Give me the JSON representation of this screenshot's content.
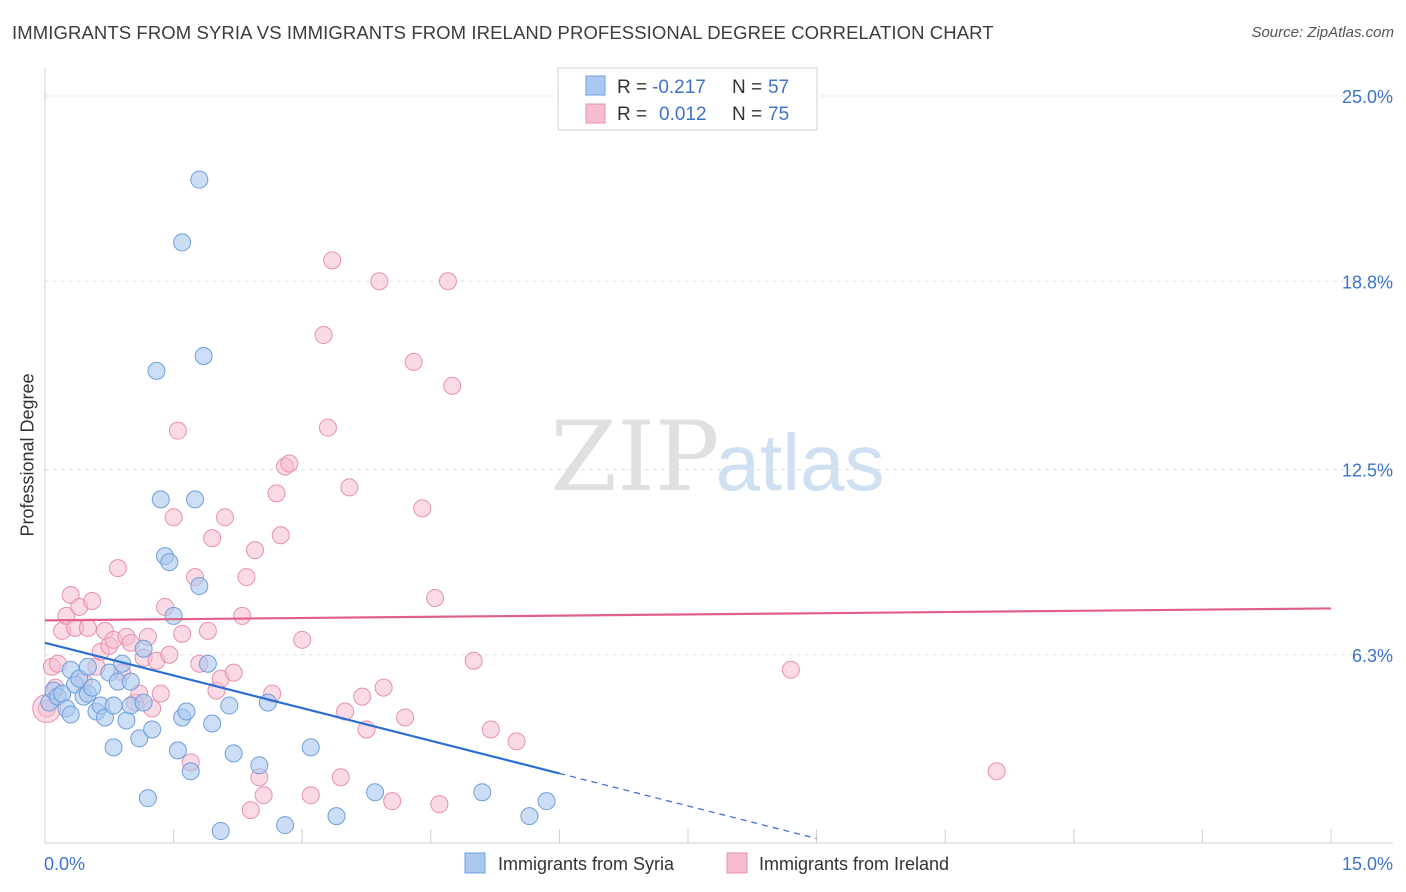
{
  "header": {
    "title": "IMMIGRANTS FROM SYRIA VS IMMIGRANTS FROM IRELAND PROFESSIONAL DEGREE CORRELATION CHART",
    "source": "Source: ZipAtlas.com"
  },
  "watermark": {
    "zip": "ZIP",
    "atlas": "atlas"
  },
  "colors": {
    "syria_fill": "#aac8f0",
    "syria_stroke": "#6e9fdc",
    "syria_line": "#2a6fd0",
    "ireland_fill": "#f6bcd0",
    "ireland_stroke": "#e890ad",
    "ireland_line": "#e0608a",
    "tick_text": "#3d74c9",
    "grid": "#dde0e4"
  },
  "legend": {
    "rows": [
      {
        "r_label": "R =",
        "r_value": "-0.217",
        "n_label": "N =",
        "n_value": "57"
      },
      {
        "r_label": "R =",
        "r_value": "0.012",
        "n_label": "N =",
        "n_value": "75"
      }
    ]
  },
  "bottom_legend": {
    "syria": "Immigrants from Syria",
    "ireland": "Immigrants from Ireland"
  },
  "chart_data": {
    "type": "scatter",
    "title": "IMMIGRANTS FROM SYRIA VS IMMIGRANTS FROM IRELAND PROFESSIONAL DEGREE CORRELATION CHART",
    "xlabel": "",
    "ylabel": "Professional Degree",
    "xlim": [
      0,
      15
    ],
    "ylim": [
      0,
      25
    ],
    "x_tick_labels": [
      "0.0%",
      "15.0%"
    ],
    "y_ticks": [
      6.3,
      12.5,
      18.8,
      25.0
    ],
    "y_tick_labels": [
      "6.3%",
      "12.5%",
      "18.8%",
      "25.0%"
    ],
    "grid": true,
    "legend_placement": "top-center",
    "series": [
      {
        "name": "Immigrants from Syria",
        "r": -0.217,
        "n": 57,
        "trend": {
          "x_solid": [
            0,
            6.0
          ],
          "y_solid": [
            6.7,
            2.33
          ],
          "x_dashed": [
            6.0,
            9.0
          ],
          "y_dashed": [
            2.33,
            0.15
          ]
        },
        "points": [
          [
            0.05,
            4.7
          ],
          [
            0.1,
            5.1
          ],
          [
            0.15,
            4.9
          ],
          [
            0.2,
            5.0
          ],
          [
            0.25,
            4.5
          ],
          [
            0.3,
            4.3
          ],
          [
            0.3,
            5.8
          ],
          [
            0.35,
            5.3
          ],
          [
            0.4,
            5.5
          ],
          [
            0.45,
            4.9
          ],
          [
            0.5,
            5.0
          ],
          [
            0.5,
            5.9
          ],
          [
            0.55,
            5.2
          ],
          [
            0.6,
            4.4
          ],
          [
            0.65,
            4.6
          ],
          [
            0.7,
            4.2
          ],
          [
            0.75,
            5.7
          ],
          [
            0.8,
            3.2
          ],
          [
            0.8,
            4.6
          ],
          [
            0.85,
            5.4
          ],
          [
            0.9,
            6.0
          ],
          [
            0.95,
            4.1
          ],
          [
            1.0,
            4.6
          ],
          [
            1.0,
            5.4
          ],
          [
            1.1,
            3.5
          ],
          [
            1.15,
            4.7
          ],
          [
            1.15,
            6.5
          ],
          [
            1.2,
            1.5
          ],
          [
            1.25,
            3.8
          ],
          [
            1.3,
            15.8
          ],
          [
            1.35,
            11.5
          ],
          [
            1.4,
            9.6
          ],
          [
            1.45,
            9.4
          ],
          [
            1.5,
            7.6
          ],
          [
            1.55,
            3.1
          ],
          [
            1.6,
            4.2
          ],
          [
            1.6,
            20.1
          ],
          [
            1.65,
            4.4
          ],
          [
            1.7,
            2.4
          ],
          [
            1.75,
            11.5
          ],
          [
            1.8,
            8.6
          ],
          [
            1.8,
            22.2
          ],
          [
            1.85,
            16.3
          ],
          [
            1.9,
            6.0
          ],
          [
            1.95,
            4.0
          ],
          [
            2.05,
            0.4
          ],
          [
            2.15,
            4.6
          ],
          [
            2.2,
            3.0
          ],
          [
            2.5,
            2.6
          ],
          [
            2.6,
            4.7
          ],
          [
            2.8,
            0.6
          ],
          [
            3.1,
            3.2
          ],
          [
            3.4,
            0.9
          ],
          [
            3.85,
            1.7
          ],
          [
            5.1,
            1.7
          ],
          [
            5.65,
            0.9
          ],
          [
            5.85,
            1.4
          ]
        ]
      },
      {
        "name": "Immigrants from Ireland",
        "r": 0.012,
        "n": 75,
        "trend": {
          "x": [
            0,
            15
          ],
          "y": [
            7.45,
            7.85
          ]
        },
        "points": [
          [
            0.02,
            4.5
          ],
          [
            0.08,
            5.9
          ],
          [
            0.12,
            5.2
          ],
          [
            0.15,
            6.0
          ],
          [
            0.2,
            7.1
          ],
          [
            0.25,
            7.6
          ],
          [
            0.3,
            8.3
          ],
          [
            0.35,
            7.2
          ],
          [
            0.4,
            7.9
          ],
          [
            0.45,
            5.4
          ],
          [
            0.5,
            7.2
          ],
          [
            0.55,
            8.1
          ],
          [
            0.6,
            5.9
          ],
          [
            0.65,
            6.4
          ],
          [
            0.7,
            7.1
          ],
          [
            0.75,
            6.6
          ],
          [
            0.8,
            6.8
          ],
          [
            0.85,
            9.2
          ],
          [
            0.9,
            5.7
          ],
          [
            0.95,
            6.9
          ],
          [
            1.0,
            6.7
          ],
          [
            1.05,
            4.7
          ],
          [
            1.1,
            5.0
          ],
          [
            1.15,
            6.2
          ],
          [
            1.2,
            6.9
          ],
          [
            1.25,
            4.5
          ],
          [
            1.3,
            6.1
          ],
          [
            1.35,
            5.0
          ],
          [
            1.4,
            7.9
          ],
          [
            1.45,
            6.3
          ],
          [
            1.5,
            10.9
          ],
          [
            1.55,
            13.8
          ],
          [
            1.6,
            7.0
          ],
          [
            1.7,
            2.7
          ],
          [
            1.75,
            8.9
          ],
          [
            1.8,
            6.0
          ],
          [
            1.9,
            7.1
          ],
          [
            1.95,
            10.2
          ],
          [
            2.0,
            5.1
          ],
          [
            2.05,
            5.5
          ],
          [
            2.1,
            10.9
          ],
          [
            2.2,
            5.7
          ],
          [
            2.3,
            7.6
          ],
          [
            2.35,
            8.9
          ],
          [
            2.4,
            1.1
          ],
          [
            2.45,
            9.8
          ],
          [
            2.5,
            2.2
          ],
          [
            2.55,
            1.6
          ],
          [
            2.65,
            5.0
          ],
          [
            2.7,
            11.7
          ],
          [
            2.75,
            10.3
          ],
          [
            2.8,
            12.6
          ],
          [
            2.85,
            12.7
          ],
          [
            3.0,
            6.8
          ],
          [
            3.1,
            1.6
          ],
          [
            3.25,
            17.0
          ],
          [
            3.3,
            13.9
          ],
          [
            3.35,
            19.5
          ],
          [
            3.45,
            2.2
          ],
          [
            3.5,
            4.4
          ],
          [
            3.55,
            11.9
          ],
          [
            3.7,
            4.9
          ],
          [
            3.75,
            3.8
          ],
          [
            3.9,
            18.8
          ],
          [
            3.95,
            5.2
          ],
          [
            4.05,
            1.4
          ],
          [
            4.2,
            4.2
          ],
          [
            4.3,
            16.1
          ],
          [
            4.4,
            11.2
          ],
          [
            4.55,
            8.2
          ],
          [
            4.6,
            1.3
          ],
          [
            4.7,
            18.8
          ],
          [
            4.75,
            15.3
          ],
          [
            5.0,
            6.1
          ],
          [
            5.2,
            3.8
          ]
        ]
      }
    ],
    "extra_ireland_points": [
      [
        5.5,
        3.4
      ],
      [
        8.7,
        5.8
      ],
      [
        11.1,
        2.4
      ]
    ]
  }
}
